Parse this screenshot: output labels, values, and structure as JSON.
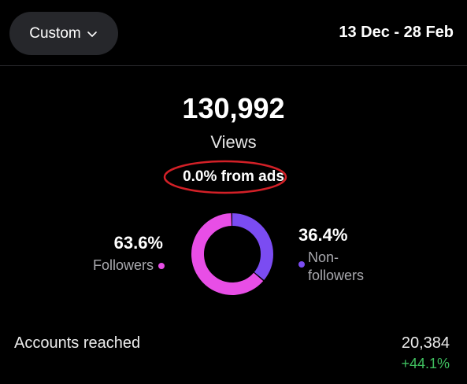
{
  "header": {
    "range_label": "Custom",
    "range_icon": "chevron-down-icon",
    "date_range": "13 Dec - 28 Feb"
  },
  "views": {
    "value": "130,992",
    "label": "Views",
    "ads_text": "0.0% from ads"
  },
  "breakdown": {
    "followers_pct": "63.6%",
    "followers_label": "Followers",
    "followers_fraction": 0.636,
    "followers_color": "#e84ee6",
    "nonfollowers_pct": "36.4%",
    "nonfollowers_label": "Non-followers",
    "nonfollowers_display_line1": "Non-",
    "nonfollowers_display_line2": "followers",
    "nonfollowers_fraction": 0.364,
    "nonfollowers_color": "#7b4cf2"
  },
  "accounts": {
    "label": "Accounts reached",
    "value": "20,384",
    "change": "+44.1%",
    "change_color": "#3fbf5f"
  },
  "annotation_color": "#d32027"
}
